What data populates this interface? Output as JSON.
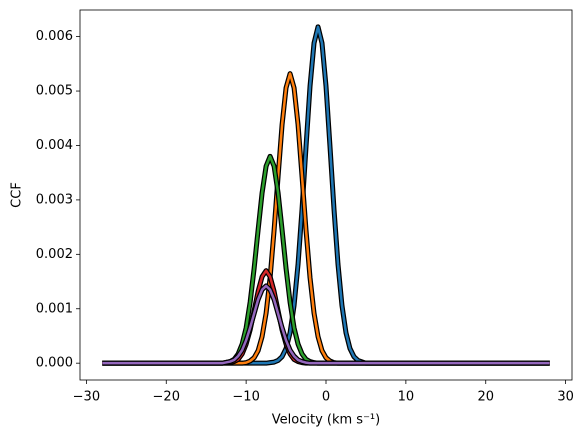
{
  "chart_data": {
    "type": "line",
    "x_label": "Velocity (km s⁻¹)",
    "y_label": "CCF",
    "x": [
      -28,
      -20,
      -15,
      -13,
      -12,
      -11.5,
      -11,
      -10.5,
      -10,
      -9.5,
      -9,
      -8.5,
      -8,
      -7.5,
      -7,
      -6.5,
      -6,
      -5.5,
      -5,
      -4.5,
      -4,
      -3.5,
      -3,
      -2.5,
      -2,
      -1.5,
      -1,
      -0.5,
      0,
      0.5,
      1,
      1.5,
      2,
      2.5,
      3,
      3.5,
      4,
      5,
      6,
      8,
      12,
      20,
      28
    ],
    "series": [
      {
        "color": "#1f77b4",
        "values": [
          0,
          0,
          0,
          0,
          0,
          0,
          0,
          0,
          0,
          0,
          0,
          0,
          0,
          0,
          1e-05,
          2e-05,
          5e-05,
          0.00012,
          0.00027,
          0.00056,
          0.00106,
          0.00182,
          0.00283,
          0.00398,
          0.00509,
          0.00588,
          0.00618,
          0.00588,
          0.00509,
          0.00398,
          0.00283,
          0.00182,
          0.00106,
          0.00056,
          0.00027,
          0.00012,
          5e-05,
          0,
          0,
          0,
          0,
          0,
          0
        ]
      },
      {
        "color": "#ff7f0e",
        "values": [
          0,
          0,
          0,
          0,
          0,
          0,
          0,
          0,
          1e-05,
          4e-05,
          0.0001,
          0.00023,
          0.00049,
          0.00092,
          0.00157,
          0.00244,
          0.00343,
          0.00438,
          0.00506,
          0.00532,
          0.00506,
          0.00438,
          0.00343,
          0.00244,
          0.00157,
          0.00092,
          0.00049,
          0.00023,
          0.0001,
          4e-05,
          1e-05,
          0,
          0,
          0,
          0,
          0,
          0,
          0,
          0,
          0,
          0,
          0,
          0
        ]
      },
      {
        "color": "#2ca02c",
        "values": [
          0,
          0,
          0,
          0,
          3e-05,
          7e-05,
          0.00017,
          0.00035,
          0.00065,
          0.00112,
          0.00174,
          0.00245,
          0.00313,
          0.00362,
          0.0038,
          0.00362,
          0.00313,
          0.00245,
          0.00174,
          0.00112,
          0.00065,
          0.00035,
          0.00017,
          7e-05,
          3e-05,
          1e-05,
          0,
          0,
          0,
          0,
          0,
          0,
          0,
          0,
          0,
          0,
          0,
          0,
          0,
          0,
          0,
          0,
          0
        ]
      },
      {
        "color": "#d62728",
        "values": [
          0,
          0,
          0,
          0,
          1e-05,
          3e-05,
          7e-05,
          0.00017,
          0.00035,
          0.00061,
          0.00096,
          0.00132,
          0.00159,
          0.0017,
          0.00159,
          0.00132,
          0.00096,
          0.00061,
          0.00035,
          0.00017,
          7e-05,
          3e-05,
          1e-05,
          0,
          0,
          0,
          0,
          0,
          0,
          0,
          0,
          0,
          0,
          0,
          0,
          0,
          0,
          0,
          0,
          0,
          0,
          0,
          0
        ]
      },
      {
        "color": "#9467bd",
        "values": [
          0,
          0,
          0,
          0,
          3e-05,
          6e-05,
          0.00013,
          0.00024,
          0.00042,
          0.00065,
          0.00091,
          0.00117,
          0.00135,
          0.00142,
          0.00135,
          0.00117,
          0.00091,
          0.00065,
          0.00042,
          0.00024,
          0.00013,
          6e-05,
          3e-05,
          1e-05,
          0,
          0,
          0,
          0,
          0,
          0,
          0,
          0,
          0,
          0,
          0,
          0,
          0,
          0,
          0,
          0,
          0,
          0,
          0
        ]
      }
    ],
    "outline_color": "#000000",
    "xlim": [
      -30.8,
      30.8
    ],
    "xticks": [
      {
        "value": -30,
        "label": "−30"
      },
      {
        "value": -20,
        "label": "−20"
      },
      {
        "value": -10,
        "label": "−10"
      },
      0,
      10,
      20,
      30
    ],
    "ylim": [
      -0.000309,
      0.006489
    ],
    "yticks": [
      {
        "value": 0,
        "label": "0.000"
      },
      {
        "value": 0.001,
        "label": "0.001"
      },
      {
        "value": 0.002,
        "label": "0.002"
      },
      {
        "value": 0.003,
        "label": "0.003"
      },
      {
        "value": 0.004,
        "label": "0.004"
      },
      {
        "value": 0.005,
        "label": "0.005"
      },
      {
        "value": 0.006,
        "label": "0.006"
      }
    ],
    "grid": false
  }
}
